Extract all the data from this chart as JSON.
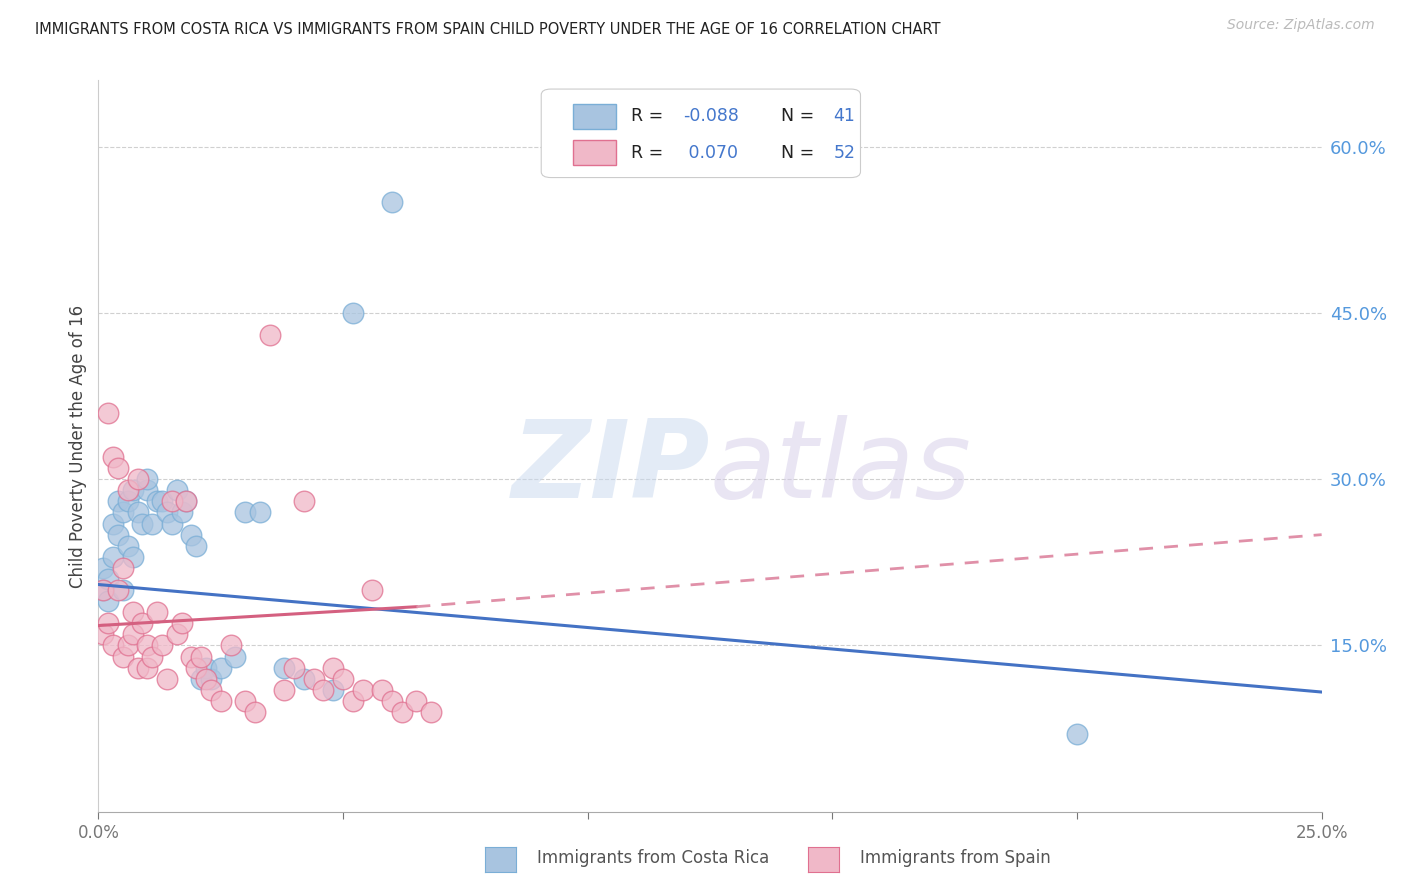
{
  "title": "IMMIGRANTS FROM COSTA RICA VS IMMIGRANTS FROM SPAIN CHILD POVERTY UNDER THE AGE OF 16 CORRELATION CHART",
  "source": "Source: ZipAtlas.com",
  "ylabel": "Child Poverty Under the Age of 16",
  "xlim": [
    0.0,
    0.25
  ],
  "ylim": [
    0.0,
    0.66
  ],
  "xticks": [
    0.0,
    0.05,
    0.1,
    0.15,
    0.2,
    0.25
  ],
  "xticklabels": [
    "0.0%",
    "",
    "",
    "",
    "",
    "25.0%"
  ],
  "yticks_right": [
    0.15,
    0.3,
    0.45,
    0.6
  ],
  "ytick_right_labels": [
    "15.0%",
    "30.0%",
    "45.0%",
    "60.0%"
  ],
  "costa_rica_color": "#a8c4e0",
  "costa_rica_edge": "#7aaed6",
  "spain_color": "#f0b8c8",
  "spain_edge": "#e07090",
  "blue_line_color": "#4472c4",
  "pink_line_solid_color": "#d46080",
  "pink_line_dash_color": "#e090a8",
  "cr_trend_x0": 0.0,
  "cr_trend_y0": 0.205,
  "cr_trend_x1": 0.25,
  "cr_trend_y1": 0.108,
  "sp_trend_solid_x0": 0.0,
  "sp_trend_solid_y0": 0.168,
  "sp_trend_solid_x1": 0.065,
  "sp_trend_solid_y1": 0.185,
  "sp_trend_dash_x0": 0.065,
  "sp_trend_dash_y0": 0.185,
  "sp_trend_dash_x1": 0.25,
  "sp_trend_dash_y1": 0.25,
  "costa_rica_x": [
    0.001,
    0.001,
    0.002,
    0.002,
    0.003,
    0.003,
    0.004,
    0.004,
    0.005,
    0.005,
    0.006,
    0.006,
    0.007,
    0.007,
    0.008,
    0.009,
    0.01,
    0.01,
    0.011,
    0.012,
    0.013,
    0.014,
    0.015,
    0.016,
    0.017,
    0.018,
    0.019,
    0.02,
    0.021,
    0.022,
    0.023,
    0.025,
    0.028,
    0.03,
    0.033,
    0.038,
    0.042,
    0.048,
    0.052,
    0.06,
    0.2
  ],
  "costa_rica_y": [
    0.2,
    0.22,
    0.19,
    0.21,
    0.23,
    0.26,
    0.28,
    0.25,
    0.2,
    0.27,
    0.28,
    0.24,
    0.23,
    0.29,
    0.27,
    0.26,
    0.29,
    0.3,
    0.26,
    0.28,
    0.28,
    0.27,
    0.26,
    0.29,
    0.27,
    0.28,
    0.25,
    0.24,
    0.12,
    0.13,
    0.12,
    0.13,
    0.14,
    0.27,
    0.27,
    0.13,
    0.12,
    0.11,
    0.45,
    0.55,
    0.07
  ],
  "spain_x": [
    0.001,
    0.001,
    0.002,
    0.002,
    0.003,
    0.003,
    0.004,
    0.004,
    0.005,
    0.005,
    0.006,
    0.006,
    0.007,
    0.007,
    0.008,
    0.008,
    0.009,
    0.01,
    0.01,
    0.011,
    0.012,
    0.013,
    0.014,
    0.015,
    0.016,
    0.017,
    0.018,
    0.019,
    0.02,
    0.021,
    0.022,
    0.023,
    0.025,
    0.027,
    0.03,
    0.032,
    0.035,
    0.038,
    0.04,
    0.042,
    0.044,
    0.046,
    0.048,
    0.05,
    0.052,
    0.054,
    0.056,
    0.058,
    0.06,
    0.062,
    0.065,
    0.068
  ],
  "spain_y": [
    0.2,
    0.16,
    0.36,
    0.17,
    0.32,
    0.15,
    0.2,
    0.31,
    0.14,
    0.22,
    0.15,
    0.29,
    0.18,
    0.16,
    0.3,
    0.13,
    0.17,
    0.13,
    0.15,
    0.14,
    0.18,
    0.15,
    0.12,
    0.28,
    0.16,
    0.17,
    0.28,
    0.14,
    0.13,
    0.14,
    0.12,
    0.11,
    0.1,
    0.15,
    0.1,
    0.09,
    0.43,
    0.11,
    0.13,
    0.28,
    0.12,
    0.11,
    0.13,
    0.12,
    0.1,
    0.11,
    0.2,
    0.11,
    0.1,
    0.09,
    0.1,
    0.09
  ]
}
